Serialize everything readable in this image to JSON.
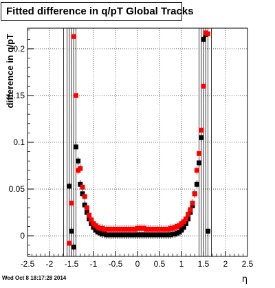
{
  "window": {
    "title": "Fitted difference in q/pT  Global Tracks",
    "timestamp": "Wed Oct  8 18:17:28 2014"
  },
  "chart_data": {
    "type": "scatter",
    "title": "Fitted difference in q/pT  Global Tracks",
    "xlabel": "η",
    "ylabel": "difference in q/pT",
    "xlim": [
      -2.5,
      2.5
    ],
    "ylim": [
      -0.022,
      0.222
    ],
    "xticks": [
      "-2.5",
      "-2",
      "-1.5",
      "-1",
      "-0.5",
      "0",
      "0.5",
      "1",
      "1.5",
      "2",
      "2.5"
    ],
    "yticks": [
      "0",
      "0.05",
      "0.1",
      "0.15",
      "0.2"
    ],
    "grid": true,
    "series": [
      {
        "color": "#000000",
        "marker": "square",
        "points": [
          [
            -1.55,
            0.053
          ],
          [
            -1.5,
            0.005
          ],
          [
            -1.45,
            -0.012
          ],
          [
            -1.4,
            0.095
          ],
          [
            -1.35,
            0.08
          ],
          [
            -1.3,
            0.055
          ],
          [
            -1.25,
            0.045
          ],
          [
            -1.2,
            0.033
          ],
          [
            -1.15,
            0.025
          ],
          [
            -1.1,
            0.018
          ],
          [
            -1.05,
            0.013
          ],
          [
            -1.0,
            0.009
          ],
          [
            -0.95,
            0.006
          ],
          [
            -0.9,
            0.004
          ],
          [
            -0.85,
            0.003
          ],
          [
            -0.8,
            0.002
          ],
          [
            -0.75,
            0.002
          ],
          [
            -0.7,
            0.001
          ],
          [
            -0.65,
            0.001
          ],
          [
            -0.6,
            0.001
          ],
          [
            -0.55,
            0.001
          ],
          [
            -0.5,
            0.001
          ],
          [
            -0.45,
            0.001
          ],
          [
            -0.4,
            0.001
          ],
          [
            -0.35,
            0.001
          ],
          [
            -0.3,
            0.001
          ],
          [
            -0.25,
            0.001
          ],
          [
            -0.2,
            0.001
          ],
          [
            -0.15,
            0.001
          ],
          [
            -0.1,
            0.001
          ],
          [
            -0.05,
            0.001
          ],
          [
            0.0,
            0.001
          ],
          [
            0.05,
            0.001
          ],
          [
            0.1,
            0.001
          ],
          [
            0.15,
            0.001
          ],
          [
            0.2,
            0.001
          ],
          [
            0.25,
            0.001
          ],
          [
            0.3,
            0.001
          ],
          [
            0.35,
            0.001
          ],
          [
            0.4,
            0.001
          ],
          [
            0.45,
            0.001
          ],
          [
            0.5,
            0.001
          ],
          [
            0.55,
            0.001
          ],
          [
            0.6,
            0.001
          ],
          [
            0.65,
            0.001
          ],
          [
            0.7,
            0.001
          ],
          [
            0.75,
            0.001
          ],
          [
            0.8,
            0.002
          ],
          [
            0.85,
            0.002
          ],
          [
            0.9,
            0.003
          ],
          [
            0.95,
            0.004
          ],
          [
            1.0,
            0.006
          ],
          [
            1.05,
            0.009
          ],
          [
            1.1,
            0.013
          ],
          [
            1.15,
            0.018
          ],
          [
            1.2,
            0.025
          ],
          [
            1.25,
            0.032
          ],
          [
            1.3,
            0.045
          ],
          [
            1.35,
            0.055
          ],
          [
            1.4,
            0.078
          ],
          [
            1.45,
            0.105
          ],
          [
            1.5,
            0.21
          ],
          [
            1.55,
            0.215
          ],
          [
            1.6,
            0.005
          ]
        ]
      },
      {
        "color": "#ff0000",
        "marker": "square",
        "points": [
          [
            -1.55,
            -0.008
          ],
          [
            -1.5,
            0.035
          ],
          [
            -1.45,
            0.213
          ],
          [
            -1.4,
            0.15
          ],
          [
            -1.35,
            0.07
          ],
          [
            -1.3,
            0.072
          ],
          [
            -1.25,
            0.052
          ],
          [
            -1.2,
            0.042
          ],
          [
            -1.15,
            0.03
          ],
          [
            -1.1,
            0.022
          ],
          [
            -1.05,
            0.017
          ],
          [
            -1.0,
            0.013
          ],
          [
            -0.95,
            0.011
          ],
          [
            -0.9,
            0.009
          ],
          [
            -0.85,
            0.008
          ],
          [
            -0.8,
            0.008
          ],
          [
            -0.75,
            0.007
          ],
          [
            -0.7,
            0.007
          ],
          [
            -0.65,
            0.007
          ],
          [
            -0.6,
            0.007
          ],
          [
            -0.55,
            0.007
          ],
          [
            -0.5,
            0.007
          ],
          [
            -0.45,
            0.007
          ],
          [
            -0.4,
            0.007
          ],
          [
            -0.35,
            0.007
          ],
          [
            -0.3,
            0.007
          ],
          [
            -0.25,
            0.007
          ],
          [
            -0.2,
            0.007
          ],
          [
            -0.15,
            0.007
          ],
          [
            -0.1,
            0.007
          ],
          [
            -0.05,
            0.007
          ],
          [
            0.0,
            0.008
          ],
          [
            0.05,
            0.008
          ],
          [
            0.1,
            0.008
          ],
          [
            0.15,
            0.008
          ],
          [
            0.2,
            0.007
          ],
          [
            0.25,
            0.007
          ],
          [
            0.3,
            0.007
          ],
          [
            0.35,
            0.007
          ],
          [
            0.4,
            0.007
          ],
          [
            0.45,
            0.007
          ],
          [
            0.5,
            0.007
          ],
          [
            0.55,
            0.007
          ],
          [
            0.6,
            0.007
          ],
          [
            0.65,
            0.007
          ],
          [
            0.7,
            0.007
          ],
          [
            0.75,
            0.008
          ],
          [
            0.8,
            0.008
          ],
          [
            0.85,
            0.009
          ],
          [
            0.9,
            0.01
          ],
          [
            0.95,
            0.011
          ],
          [
            1.0,
            0.013
          ],
          [
            1.05,
            0.015
          ],
          [
            1.1,
            0.018
          ],
          [
            1.15,
            0.023
          ],
          [
            1.2,
            0.028
          ],
          [
            1.25,
            0.035
          ],
          [
            1.3,
            0.045
          ],
          [
            1.35,
            0.07
          ],
          [
            1.4,
            0.088
          ],
          [
            1.45,
            0.113
          ],
          [
            1.5,
            0.16
          ],
          [
            1.55,
            0.217
          ],
          [
            1.6,
            0.216
          ]
        ]
      }
    ],
    "errorbar_lines": [
      -1.68,
      -1.6,
      -1.55,
      -1.5,
      -1.45,
      -1.4,
      1.4,
      1.45,
      1.5,
      1.55,
      1.6,
      1.68
    ]
  }
}
